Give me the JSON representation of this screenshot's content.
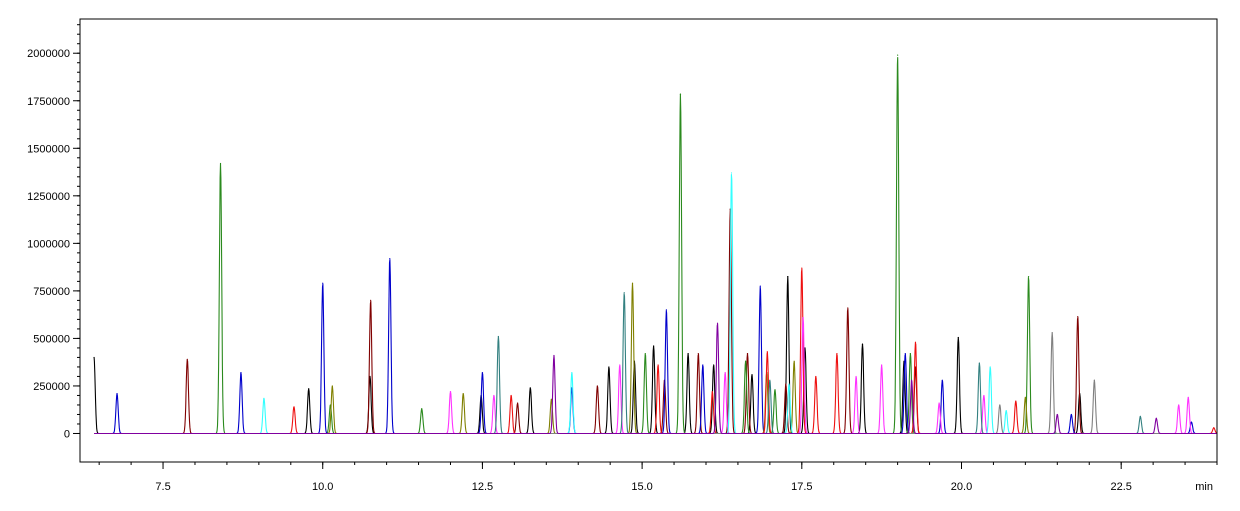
{
  "chart_data": {
    "type": "line",
    "title": "",
    "xlabel": "min",
    "ylabel": "",
    "xlim": [
      6.2,
      24.0
    ],
    "ylim": [
      -150000,
      2180000
    ],
    "grid": false,
    "legend": "none",
    "x_ticks": [
      7.5,
      10.0,
      12.5,
      15.0,
      17.5,
      20.0,
      22.5
    ],
    "x_tick_labels": [
      "7.5",
      "10.0",
      "12.5",
      "15.0",
      "17.5",
      "20.0",
      "22.5"
    ],
    "x_minor_step": 0.5,
    "y_ticks": [
      0,
      250000,
      500000,
      750000,
      1000000,
      1250000,
      1500000,
      1750000,
      2000000
    ],
    "y_tick_labels": [
      "0",
      "250000",
      "500000",
      "750000",
      "1000000",
      "1250000",
      "1500000",
      "1750000",
      "2000000"
    ],
    "y_minor_step": 50000,
    "series": [
      {
        "color": "#000000",
        "peaks": [
          [
            6.42,
            400000
          ],
          [
            9.78,
            235000
          ],
          [
            10.74,
            300000
          ],
          [
            12.48,
            200000
          ],
          [
            13.25,
            240000
          ],
          [
            14.48,
            350000
          ],
          [
            14.88,
            380000
          ],
          [
            15.18,
            460000
          ],
          [
            15.72,
            420000
          ],
          [
            16.12,
            360000
          ],
          [
            16.72,
            310000
          ],
          [
            17.28,
            825000
          ],
          [
            17.55,
            450000
          ],
          [
            18.45,
            470000
          ],
          [
            19.1,
            380000
          ],
          [
            19.95,
            505000
          ],
          [
            21.85,
            210000
          ]
        ]
      },
      {
        "color": "#800000",
        "peaks": [
          [
            7.88,
            390000
          ],
          [
            10.75,
            700000
          ],
          [
            13.05,
            160000
          ],
          [
            14.3,
            250000
          ],
          [
            15.35,
            280000
          ],
          [
            15.88,
            420000
          ],
          [
            16.38,
            1180000
          ],
          [
            16.65,
            420000
          ],
          [
            17.25,
            260000
          ],
          [
            18.22,
            660000
          ],
          [
            19.28,
            350000
          ],
          [
            21.82,
            615000
          ]
        ]
      },
      {
        "color": "#2b8a1e",
        "peaks": [
          [
            8.4,
            1420000
          ],
          [
            10.12,
            150000
          ],
          [
            11.55,
            130000
          ],
          [
            15.05,
            420000
          ],
          [
            15.6,
            1785000
          ],
          [
            16.62,
            380000
          ],
          [
            17.08,
            230000
          ],
          [
            19.0,
            1990000
          ],
          [
            19.2,
            420000
          ],
          [
            21.05,
            825000
          ]
        ]
      },
      {
        "color": "#0000cc",
        "peaks": [
          [
            6.78,
            210000
          ],
          [
            8.72,
            320000
          ],
          [
            10.0,
            790000
          ],
          [
            11.05,
            920000
          ],
          [
            12.5,
            320000
          ],
          [
            13.9,
            240000
          ],
          [
            15.38,
            650000
          ],
          [
            15.95,
            360000
          ],
          [
            16.85,
            775000
          ],
          [
            19.12,
            420000
          ],
          [
            19.7,
            280000
          ],
          [
            21.72,
            100000
          ],
          [
            23.6,
            60000
          ]
        ]
      },
      {
        "color": "#808000",
        "peaks": [
          [
            10.15,
            250000
          ],
          [
            12.2,
            210000
          ],
          [
            13.58,
            180000
          ],
          [
            14.85,
            790000
          ],
          [
            16.95,
            320000
          ],
          [
            17.38,
            380000
          ],
          [
            21.0,
            190000
          ]
        ]
      },
      {
        "color": "#ee1010",
        "peaks": [
          [
            9.55,
            140000
          ],
          [
            12.95,
            200000
          ],
          [
            15.25,
            360000
          ],
          [
            16.1,
            220000
          ],
          [
            16.96,
            430000
          ],
          [
            17.5,
            870000
          ],
          [
            17.72,
            300000
          ],
          [
            18.05,
            420000
          ],
          [
            19.28,
            480000
          ],
          [
            20.85,
            170000
          ],
          [
            23.95,
            30000
          ]
        ]
      },
      {
        "color": "#ff33ff",
        "peaks": [
          [
            12.0,
            220000
          ],
          [
            12.68,
            200000
          ],
          [
            14.65,
            360000
          ],
          [
            16.3,
            320000
          ],
          [
            17.52,
            610000
          ],
          [
            18.35,
            300000
          ],
          [
            18.75,
            360000
          ],
          [
            19.65,
            160000
          ],
          [
            20.35,
            200000
          ],
          [
            23.4,
            150000
          ],
          [
            23.55,
            190000
          ]
        ]
      },
      {
        "color": "#33ffff",
        "peaks": [
          [
            9.08,
            185000
          ],
          [
            13.9,
            320000
          ],
          [
            16.4,
            1370000
          ],
          [
            17.3,
            260000
          ],
          [
            20.45,
            350000
          ],
          [
            20.7,
            120000
          ]
        ]
      },
      {
        "color": "#338080",
        "peaks": [
          [
            12.75,
            510000
          ],
          [
            14.72,
            740000
          ],
          [
            17.0,
            280000
          ],
          [
            20.28,
            370000
          ],
          [
            22.8,
            90000
          ]
        ]
      },
      {
        "color": "#808080",
        "peaks": [
          [
            20.6,
            150000
          ],
          [
            21.42,
            530000
          ],
          [
            22.08,
            280000
          ]
        ]
      },
      {
        "color": "#8000a0",
        "peaks": [
          [
            13.62,
            410000
          ],
          [
            16.18,
            580000
          ],
          [
            19.22,
            280000
          ],
          [
            21.5,
            100000
          ],
          [
            23.05,
            80000
          ]
        ]
      }
    ]
  }
}
